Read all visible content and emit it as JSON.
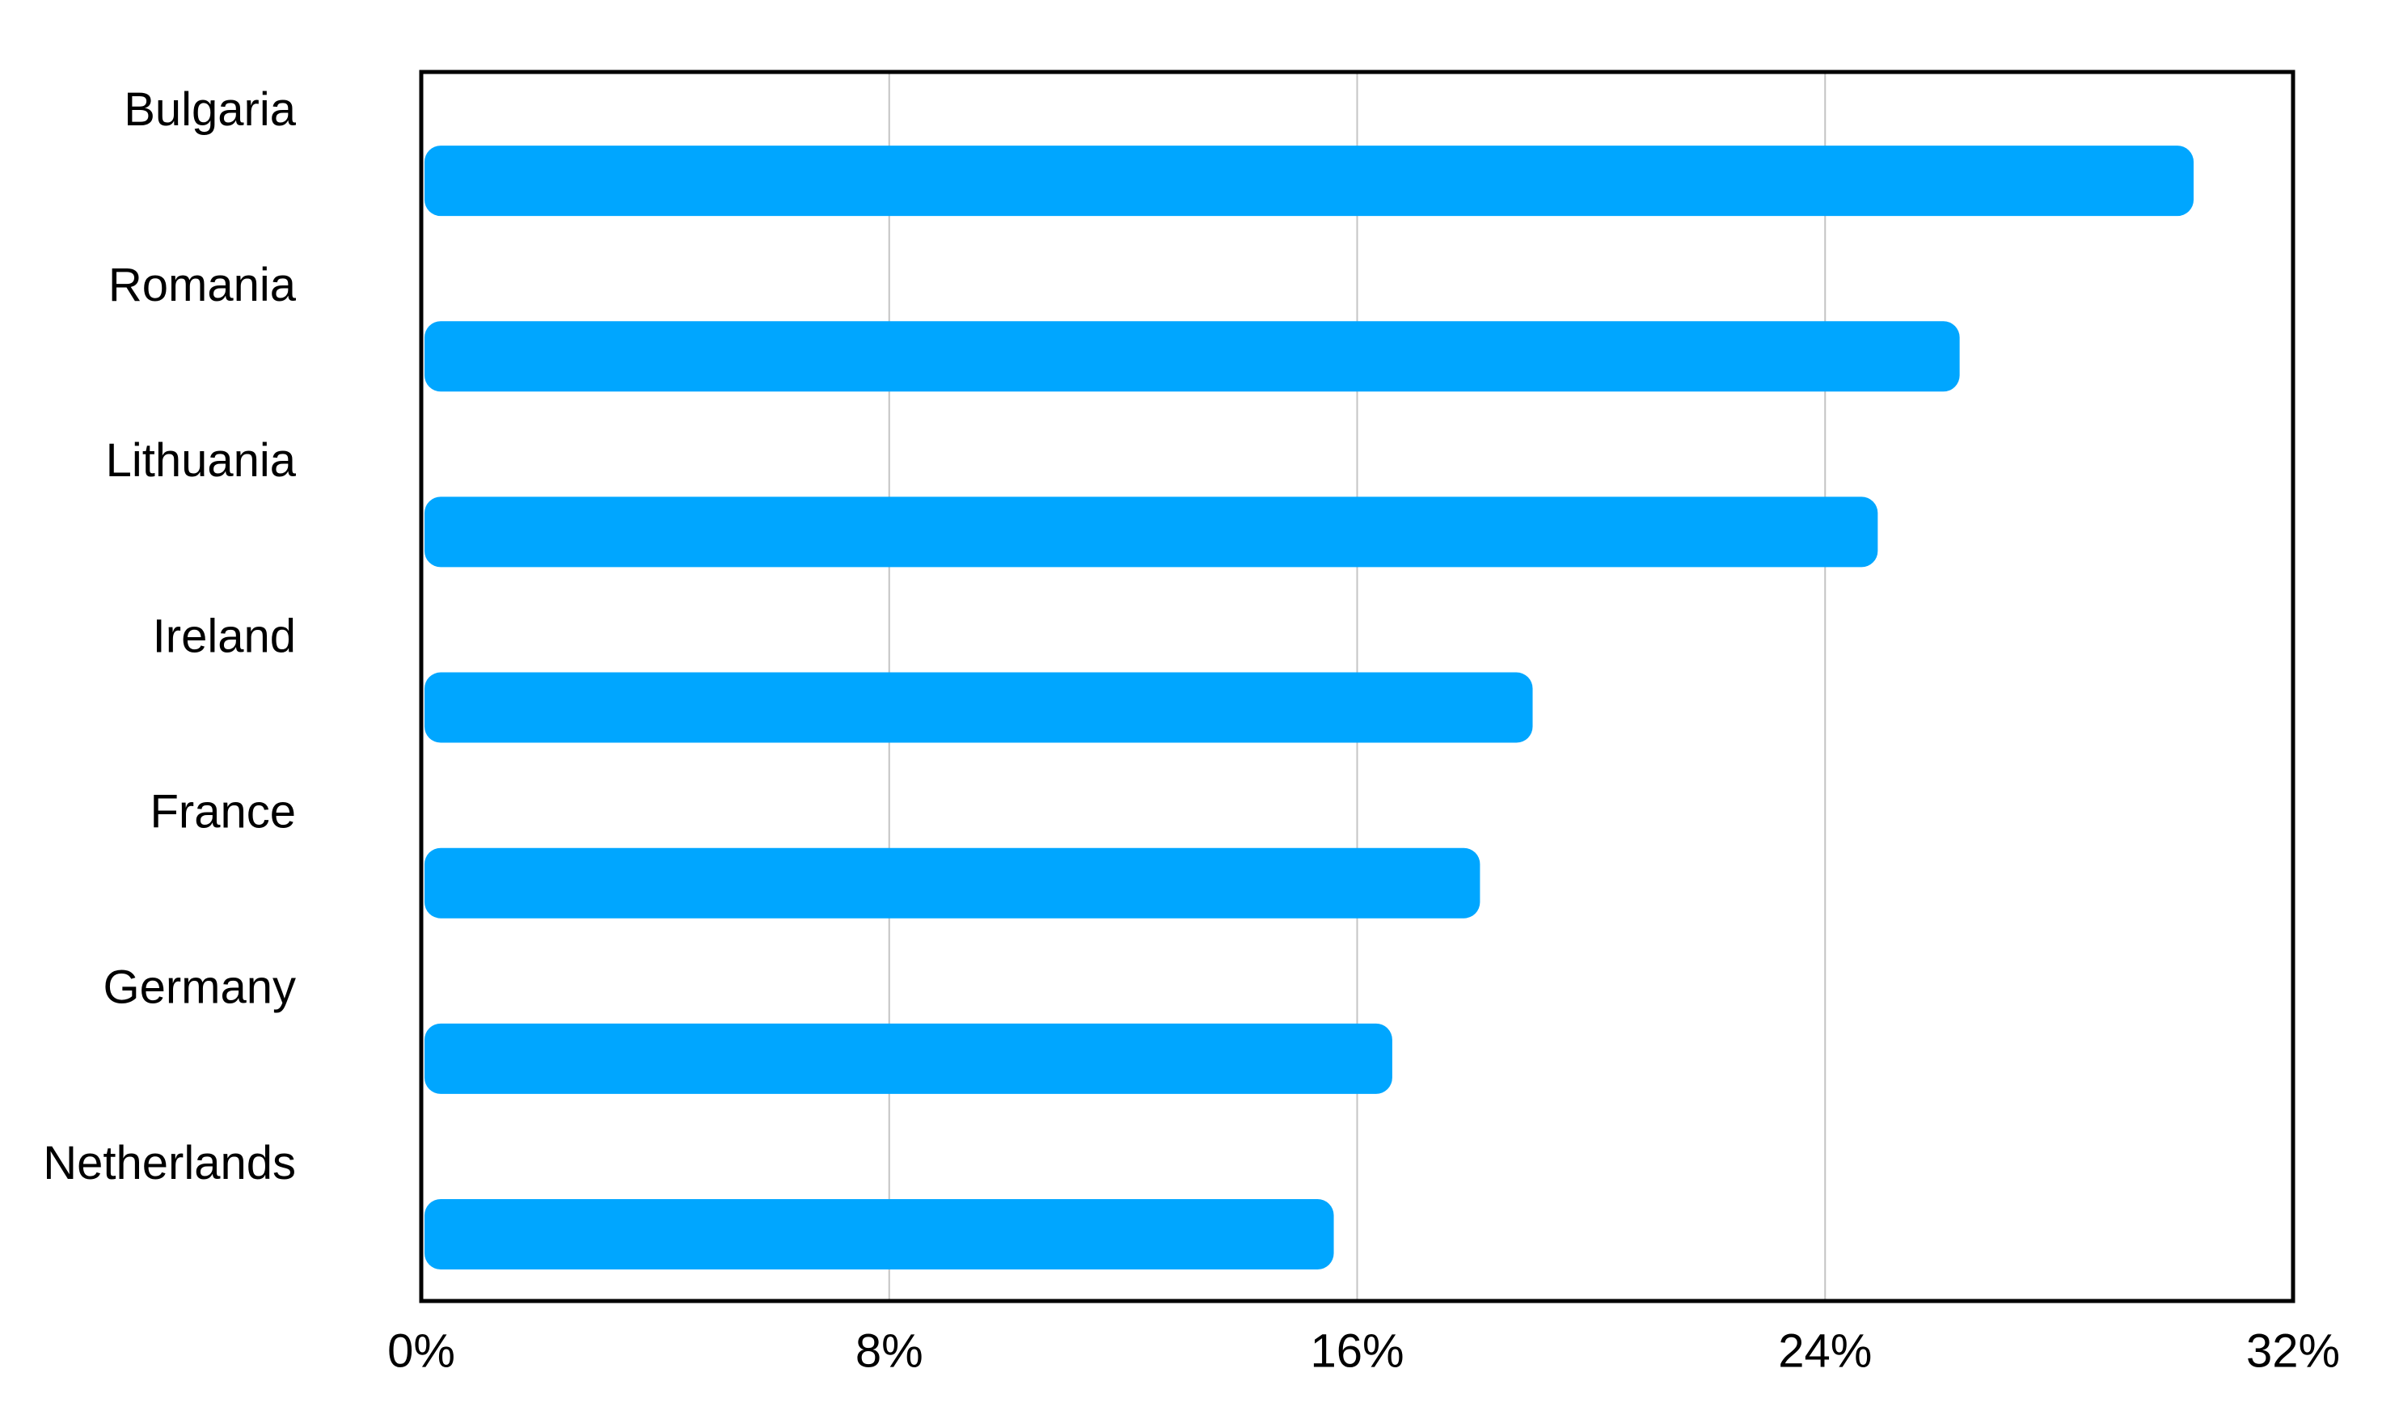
{
  "chart_data": {
    "type": "bar",
    "orientation": "horizontal",
    "categories": [
      "Bulgaria",
      "Romania",
      "Lithuania",
      "Ireland",
      "France",
      "Germany",
      "Netherlands"
    ],
    "values": [
      30.3,
      26.3,
      24.9,
      19.0,
      18.1,
      16.6,
      15.6
    ],
    "color": "#00a6ff",
    "xlim": [
      0,
      32
    ],
    "xticks": [
      {
        "value": 0,
        "label": "0%"
      },
      {
        "value": 8,
        "label": "8%"
      },
      {
        "value": 16,
        "label": "16%"
      },
      {
        "value": 24,
        "label": "24%"
      },
      {
        "value": 32,
        "label": "32%"
      }
    ],
    "grid": true
  }
}
